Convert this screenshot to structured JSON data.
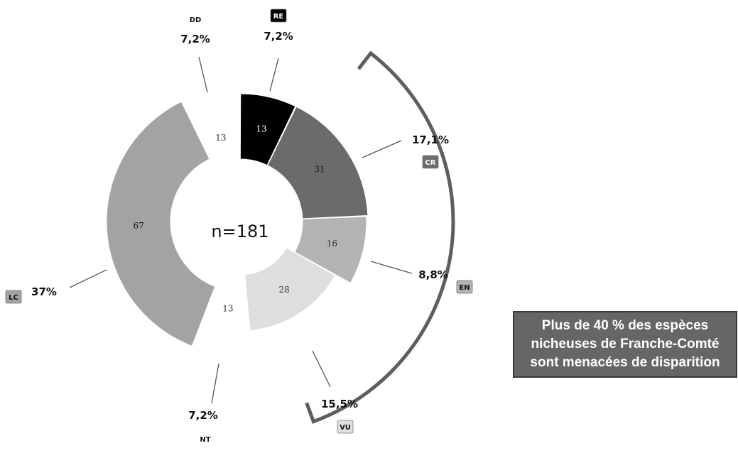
{
  "chart_data": {
    "type": "pie",
    "center_label": "n=181",
    "segments": [
      {
        "code": "RE",
        "value": "13",
        "percent": "7,2%",
        "color": "#000000",
        "text_color": "#ffffff",
        "badge_color": "#000000",
        "badge_text": "#ffffff"
      },
      {
        "code": "CR",
        "value": "31",
        "percent": "17,1%",
        "color": "#6b6b6b",
        "text_color": "#111111",
        "badge_color": "#6b6b6b",
        "badge_text": "#ffffff"
      },
      {
        "code": "EN",
        "value": "16",
        "percent": "8,8%",
        "color": "#b3b3b3",
        "text_color": "#333333",
        "badge_color": "#b3b3b3",
        "badge_text": "#111111"
      },
      {
        "code": "VU",
        "value": "28",
        "percent": "15,5%",
        "color": "#dedede",
        "text_color": "#333333",
        "badge_color": "#dedede",
        "badge_text": "#111111"
      },
      {
        "code": "NT",
        "value": "13",
        "percent": "7,2%",
        "color": "#ffffff",
        "text_color": "#333333",
        "badge_color": null,
        "badge_text": "#111111"
      },
      {
        "code": "LC",
        "value": "67",
        "percent": "37%",
        "color": "#a3a3a3",
        "text_color": "#111111",
        "badge_color": "#a3a3a3",
        "badge_text": "#111111"
      },
      {
        "code": "DD",
        "value": "13",
        "percent": "7,2%",
        "color": "#ffffff",
        "text_color": "#333333",
        "badge_color": null,
        "badge_text": "#111111"
      }
    ],
    "bracket_color": "#5e5e5e"
  },
  "message": {
    "lines": [
      "Plus de 40 % des espèces",
      "nicheuses de Franche-Comté",
      "sont menacées de disparition"
    ]
  }
}
